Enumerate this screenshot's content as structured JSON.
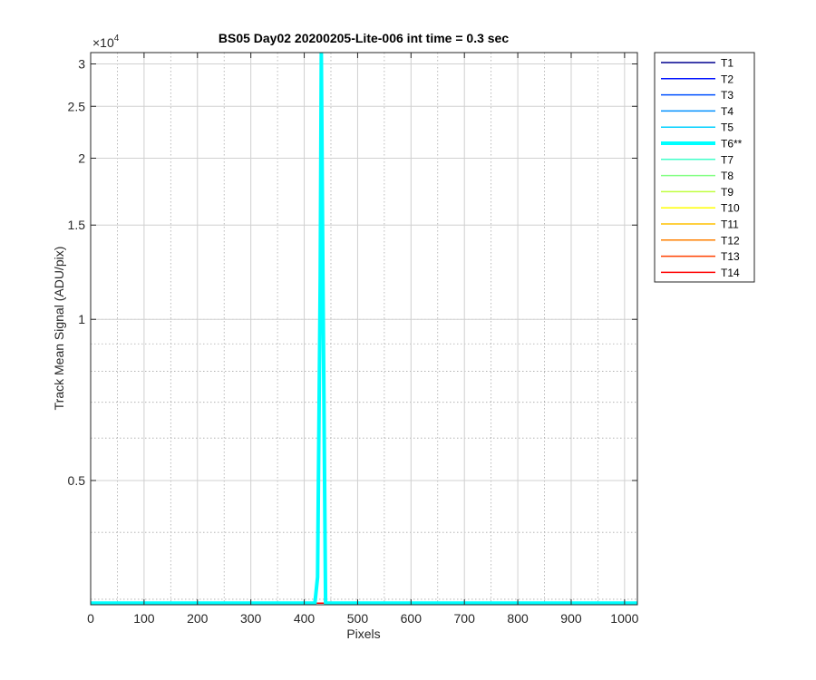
{
  "chart_data": {
    "type": "line",
    "title": "BS05 Day02 20200205-Lite-006 int time = 0.3 sec",
    "xlabel": "Pixels",
    "ylabel": "Track Mean Signal (ADU/pix)",
    "xlim": [
      0,
      1024
    ],
    "ylim": [
      2930,
      31500
    ],
    "yscale": "log",
    "y_exponent_label": "×10^4",
    "y_exponent_base": "×10",
    "y_exponent_power": "4",
    "xticks": [
      0,
      100,
      200,
      300,
      400,
      500,
      600,
      700,
      800,
      900,
      1000
    ],
    "xtick_labels": [
      "0",
      "100",
      "200",
      "300",
      "400",
      "500",
      "600",
      "700",
      "800",
      "900",
      "1000"
    ],
    "yticks": [
      5000,
      10000,
      15000,
      20000,
      25000,
      30000
    ],
    "ytick_labels": [
      "0.5",
      "1",
      "1.5",
      "2",
      "2.5",
      "3"
    ],
    "grid": true,
    "legend_position": "outside-right",
    "series": [
      {
        "name": "T1",
        "color": "#00008f",
        "width": 1.5,
        "x": [
          0,
          1024
        ],
        "y": [
          2950,
          2950
        ]
      },
      {
        "name": "T2",
        "color": "#0010ff",
        "width": 1.5,
        "x": [
          0,
          1024
        ],
        "y": [
          2950,
          2950
        ]
      },
      {
        "name": "T3",
        "color": "#0050ff",
        "width": 1.5,
        "x": [
          0,
          1024
        ],
        "y": [
          2950,
          2950
        ]
      },
      {
        "name": "T4",
        "color": "#0090ff",
        "width": 1.5,
        "x": [
          0,
          1024
        ],
        "y": [
          2950,
          2950
        ]
      },
      {
        "name": "T5",
        "color": "#00d0ff",
        "width": 1.5,
        "x": [
          0,
          1024
        ],
        "y": [
          2950,
          2950
        ]
      },
      {
        "name": "T6**",
        "color": "#00ffff",
        "width": 4,
        "x": [
          0,
          420,
          425,
          430,
          432,
          435,
          440,
          1024
        ],
        "y": [
          2950,
          2950,
          3300,
          12000,
          31500,
          12000,
          2950,
          2950
        ]
      },
      {
        "name": "T7",
        "color": "#40ffc8",
        "width": 1.5,
        "x": [
          0,
          1024
        ],
        "y": [
          2950,
          2950
        ]
      },
      {
        "name": "T8",
        "color": "#80ff80",
        "width": 1.5,
        "x": [
          0,
          1024
        ],
        "y": [
          2950,
          2950
        ]
      },
      {
        "name": "T9",
        "color": "#c0ff40",
        "width": 1.5,
        "x": [
          0,
          1024
        ],
        "y": [
          2950,
          2950
        ]
      },
      {
        "name": "T10",
        "color": "#ffff00",
        "width": 1.5,
        "x": [
          0,
          1024
        ],
        "y": [
          2950,
          2950
        ]
      },
      {
        "name": "T11",
        "color": "#ffc000",
        "width": 1.5,
        "x": [
          0,
          1024
        ],
        "y": [
          2950,
          2950
        ]
      },
      {
        "name": "T12",
        "color": "#ff8000",
        "width": 1.5,
        "x": [
          0,
          1024
        ],
        "y": [
          2950,
          2950
        ]
      },
      {
        "name": "T13",
        "color": "#ff4000",
        "width": 1.5,
        "x": [
          0,
          1024
        ],
        "y": [
          2950,
          2950
        ]
      },
      {
        "name": "T14",
        "color": "#ff0000",
        "width": 1.5,
        "x": [
          0,
          1024
        ],
        "y": [
          2950,
          2950
        ]
      }
    ]
  }
}
